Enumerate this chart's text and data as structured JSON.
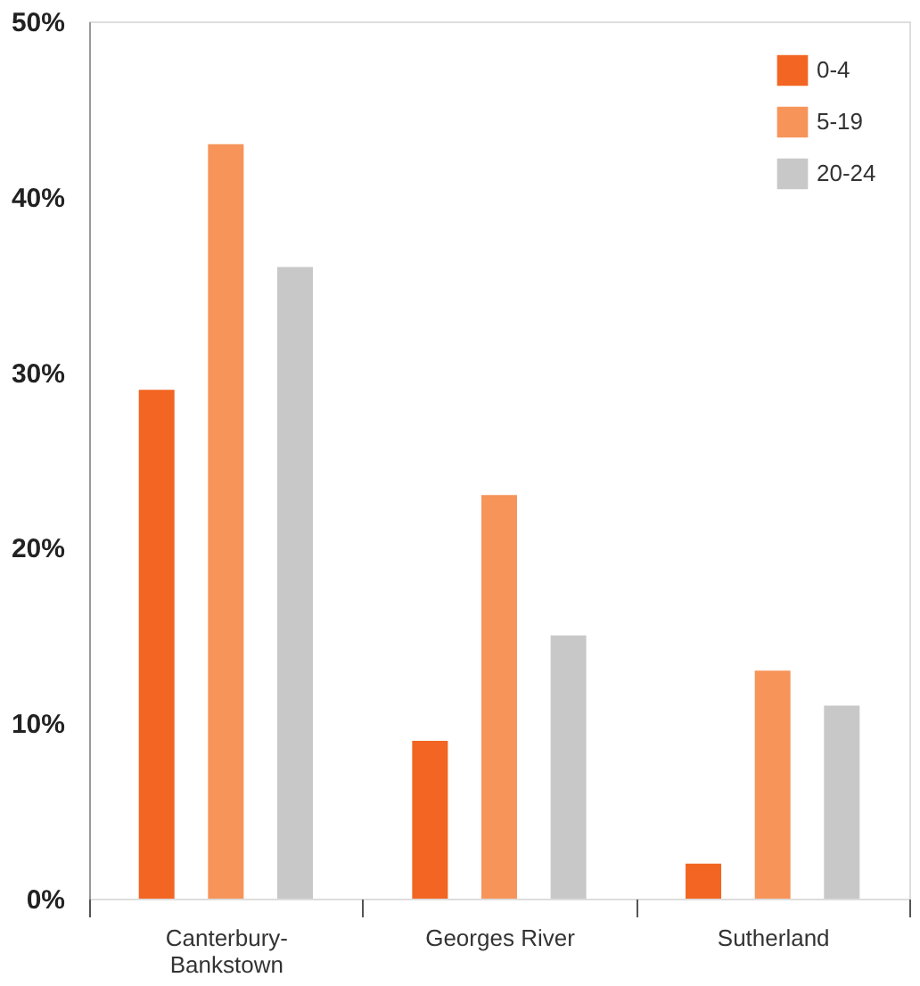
{
  "chart_data": {
    "type": "bar",
    "categories": [
      "Canterbury-Bankstown",
      "Georges River",
      "Sutherland"
    ],
    "series": [
      {
        "name": "0-4",
        "color": "#f26522",
        "values": [
          29,
          9,
          2
        ]
      },
      {
        "name": "5-19",
        "color": "#f7945a",
        "values": [
          43,
          23,
          13
        ]
      },
      {
        "name": "20-24",
        "color": "#c8c8c8",
        "values": [
          36,
          15,
          11
        ]
      }
    ],
    "ylim": [
      0,
      50
    ],
    "yticks": [
      {
        "value": 0,
        "label": "0%"
      },
      {
        "value": 10,
        "label": "10%"
      },
      {
        "value": 20,
        "label": "20%"
      },
      {
        "value": 30,
        "label": "30%"
      },
      {
        "value": 40,
        "label": "40%"
      },
      {
        "value": 50,
        "label": "50%"
      }
    ],
    "grid": false,
    "legend": "top right"
  }
}
